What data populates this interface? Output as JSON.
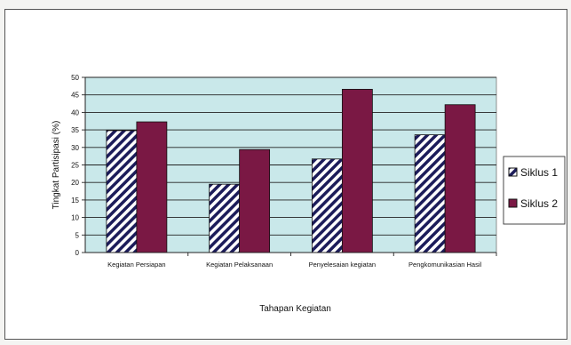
{
  "chart_data": {
    "type": "bar",
    "title": "",
    "xlabel": "Tahapan Kegiatan",
    "ylabel": "Tingkat Partisipasi (%)",
    "ylim": [
      0,
      50
    ],
    "yticks": [
      0,
      5,
      10,
      15,
      20,
      25,
      30,
      35,
      40,
      45,
      50
    ],
    "grid": true,
    "legend_position": "right",
    "categories": [
      "Kegiatan Persiapan",
      "Kegiatan Pelaksanaan",
      "Penyelesaian kegiatan",
      "Pengkomunikasian Hasil"
    ],
    "series": [
      {
        "name": "Siklus 1",
        "values": [
          34.8,
          19.5,
          26.7,
          33.6
        ],
        "color": "#ffffff",
        "pattern": "diagonal-hatch",
        "pattern_color": "#1c1c5a"
      },
      {
        "name": "Siklus 2",
        "values": [
          37.3,
          29.4,
          46.6,
          42.2
        ],
        "color": "#7a1844"
      }
    ],
    "plot_background": "#c9e8ea"
  }
}
